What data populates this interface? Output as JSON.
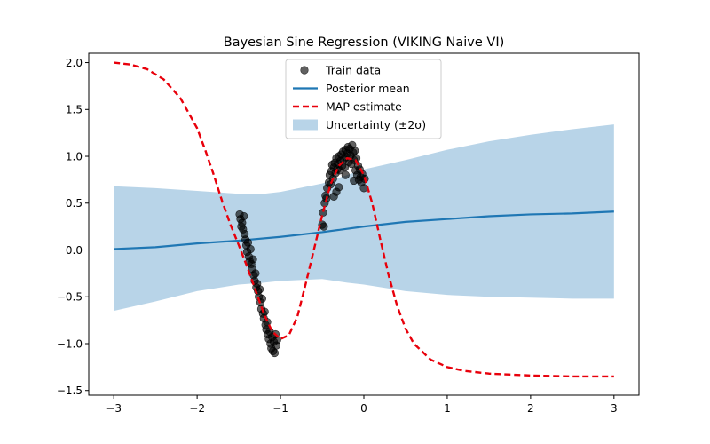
{
  "chart_data": {
    "type": "scatter",
    "title": "Bayesian Sine Regression (VIKING Naive VI)",
    "xlabel": "",
    "ylabel": "",
    "xlim": [
      -3.3,
      3.3
    ],
    "ylim": [
      -1.55,
      2.1
    ],
    "xticks": [
      -3,
      -2,
      -1,
      0,
      1,
      2,
      3
    ],
    "yticks": [
      -1.5,
      -1.0,
      -0.5,
      0.0,
      0.5,
      1.0,
      1.5,
      2.0
    ],
    "xtick_labels": [
      "−3",
      "−2",
      "−1",
      "0",
      "1",
      "2",
      "3"
    ],
    "ytick_labels": [
      "−1.5",
      "−1.0",
      "−0.5",
      "0.0",
      "0.5",
      "1.0",
      "1.5",
      "2.0"
    ],
    "grid": false,
    "legend_position": "top-center",
    "legend": [
      {
        "label": "Train data",
        "kind": "marker",
        "color": "#333333"
      },
      {
        "label": "Posterior mean",
        "kind": "line",
        "color": "#1f77b4"
      },
      {
        "label": "MAP estimate",
        "kind": "dashed",
        "color": "#e8000b"
      },
      {
        "label": "Uncertainty (±2σ)",
        "kind": "band",
        "color": "#b8d4e8"
      }
    ],
    "series": [
      {
        "name": "Uncertainty (±2σ)",
        "kind": "band",
        "color": "#b8d4e8",
        "x": [
          -3.0,
          -2.5,
          -2.0,
          -1.5,
          -1.2,
          -1.0,
          -0.5,
          -0.2,
          0.0,
          0.5,
          1.0,
          1.5,
          2.0,
          2.5,
          3.0
        ],
        "lower": [
          -0.65,
          -0.55,
          -0.44,
          -0.37,
          -0.35,
          -0.33,
          -0.31,
          -0.35,
          -0.37,
          -0.44,
          -0.48,
          -0.5,
          -0.51,
          -0.52,
          -0.52
        ],
        "upper": [
          0.68,
          0.66,
          0.63,
          0.6,
          0.6,
          0.62,
          0.71,
          0.8,
          0.86,
          0.96,
          1.07,
          1.16,
          1.23,
          1.29,
          1.34
        ]
      },
      {
        "name": "Posterior mean",
        "kind": "line",
        "color": "#1f77b4",
        "x": [
          -3.0,
          -2.5,
          -2.0,
          -1.5,
          -1.0,
          -0.5,
          0.0,
          0.5,
          1.0,
          1.5,
          2.0,
          2.5,
          3.0
        ],
        "values": [
          0.01,
          0.03,
          0.07,
          0.1,
          0.14,
          0.19,
          0.25,
          0.3,
          0.33,
          0.36,
          0.38,
          0.39,
          0.41
        ]
      },
      {
        "name": "MAP estimate",
        "kind": "dashed",
        "color": "#e8000b",
        "x": [
          -3.0,
          -2.8,
          -2.6,
          -2.4,
          -2.2,
          -2.0,
          -1.9,
          -1.8,
          -1.7,
          -1.6,
          -1.5,
          -1.4,
          -1.3,
          -1.2,
          -1.1,
          -1.0,
          -0.9,
          -0.8,
          -0.7,
          -0.6,
          -0.5,
          -0.4,
          -0.3,
          -0.2,
          -0.1,
          0.0,
          0.1,
          0.2,
          0.3,
          0.4,
          0.5,
          0.6,
          0.8,
          1.0,
          1.2,
          1.5,
          2.0,
          2.5,
          3.0
        ],
        "values": [
          2.0,
          1.98,
          1.93,
          1.82,
          1.62,
          1.3,
          1.06,
          0.8,
          0.52,
          0.27,
          0.05,
          -0.18,
          -0.43,
          -0.68,
          -0.87,
          -0.95,
          -0.91,
          -0.72,
          -0.37,
          0.0,
          0.37,
          0.7,
          0.9,
          0.98,
          0.96,
          0.8,
          0.5,
          0.1,
          -0.28,
          -0.6,
          -0.84,
          -1.0,
          -1.17,
          -1.25,
          -1.29,
          -1.32,
          -1.34,
          -1.35,
          -1.35
        ]
      },
      {
        "name": "Train data",
        "kind": "scatter",
        "color": "#333333",
        "points": [
          [
            -1.49,
            0.38
          ],
          [
            -1.48,
            0.33
          ],
          [
            -1.47,
            0.25
          ],
          [
            -1.46,
            0.29
          ],
          [
            -1.45,
            0.22
          ],
          [
            -1.44,
            0.36
          ],
          [
            -1.43,
            0.17
          ],
          [
            -1.42,
            0.11
          ],
          [
            -1.41,
            0.05
          ],
          [
            -1.4,
            -0.02
          ],
          [
            -1.39,
            0.08
          ],
          [
            -1.38,
            -0.07
          ],
          [
            -1.37,
            -0.12
          ],
          [
            -1.36,
            0.01
          ],
          [
            -1.35,
            -0.15
          ],
          [
            -1.34,
            -0.2
          ],
          [
            -1.33,
            -0.1
          ],
          [
            -1.32,
            -0.27
          ],
          [
            -1.31,
            -0.33
          ],
          [
            -1.3,
            -0.25
          ],
          [
            -1.29,
            -0.4
          ],
          [
            -1.28,
            -0.36
          ],
          [
            -1.27,
            -0.44
          ],
          [
            -1.26,
            -0.5
          ],
          [
            -1.25,
            -0.42
          ],
          [
            -1.24,
            -0.56
          ],
          [
            -1.23,
            -0.63
          ],
          [
            -1.22,
            -0.52
          ],
          [
            -1.21,
            -0.68
          ],
          [
            -1.2,
            -0.73
          ],
          [
            -1.19,
            -0.66
          ],
          [
            -1.18,
            -0.8
          ],
          [
            -1.17,
            -0.85
          ],
          [
            -1.16,
            -0.77
          ],
          [
            -1.15,
            -0.9
          ],
          [
            -1.14,
            -0.95
          ],
          [
            -1.13,
            -0.87
          ],
          [
            -1.12,
            -1.0
          ],
          [
            -1.11,
            -1.05
          ],
          [
            -1.1,
            -0.93
          ],
          [
            -1.09,
            -1.08
          ],
          [
            -1.08,
            -0.98
          ],
          [
            -1.07,
            -1.1
          ],
          [
            -1.06,
            -0.9
          ],
          [
            -1.05,
            -1.02
          ],
          [
            -1.04,
            -0.96
          ],
          [
            -0.5,
            0.27
          ],
          [
            -0.49,
            0.4
          ],
          [
            -0.48,
            0.25
          ],
          [
            -0.47,
            0.5
          ],
          [
            -0.46,
            0.58
          ],
          [
            -0.45,
            0.55
          ],
          [
            -0.44,
            0.66
          ],
          [
            -0.42,
            0.72
          ],
          [
            -0.41,
            0.8
          ],
          [
            -0.4,
            0.7
          ],
          [
            -0.39,
            0.84
          ],
          [
            -0.38,
            0.91
          ],
          [
            -0.37,
            0.76
          ],
          [
            -0.36,
            0.88
          ],
          [
            -0.35,
            0.93
          ],
          [
            -0.34,
            0.82
          ],
          [
            -0.33,
            0.98
          ],
          [
            -0.32,
            0.86
          ],
          [
            -0.31,
            0.92
          ],
          [
            -0.3,
            1.0
          ],
          [
            -0.29,
            0.85
          ],
          [
            -0.28,
            0.95
          ],
          [
            -0.27,
            1.02
          ],
          [
            -0.26,
            0.9
          ],
          [
            -0.25,
            1.05
          ],
          [
            -0.24,
            0.97
          ],
          [
            -0.23,
            0.88
          ],
          [
            -0.22,
            1.07
          ],
          [
            -0.21,
            0.99
          ],
          [
            -0.2,
            1.03
          ],
          [
            -0.19,
            1.1
          ],
          [
            -0.18,
            0.94
          ],
          [
            -0.17,
            1.08
          ],
          [
            -0.16,
            1.01
          ],
          [
            -0.15,
            0.92
          ],
          [
            -0.14,
            1.12
          ],
          [
            -0.13,
            1.04
          ],
          [
            -0.12,
            0.96
          ],
          [
            -0.11,
            1.06
          ],
          [
            -0.1,
            0.85
          ],
          [
            -0.09,
            0.98
          ],
          [
            -0.08,
            0.8
          ],
          [
            -0.07,
            0.9
          ],
          [
            -0.06,
            0.75
          ],
          [
            -0.05,
            0.86
          ],
          [
            -0.04,
            0.78
          ],
          [
            -0.03,
            0.72
          ],
          [
            -0.02,
            0.81
          ],
          [
            0.0,
            0.66
          ],
          [
            0.01,
            0.76
          ],
          [
            -0.12,
            0.74
          ],
          [
            -0.22,
            0.8
          ],
          [
            -0.3,
            0.67
          ],
          [
            -0.33,
            0.62
          ],
          [
            -0.36,
            0.57
          ]
        ]
      }
    ]
  }
}
